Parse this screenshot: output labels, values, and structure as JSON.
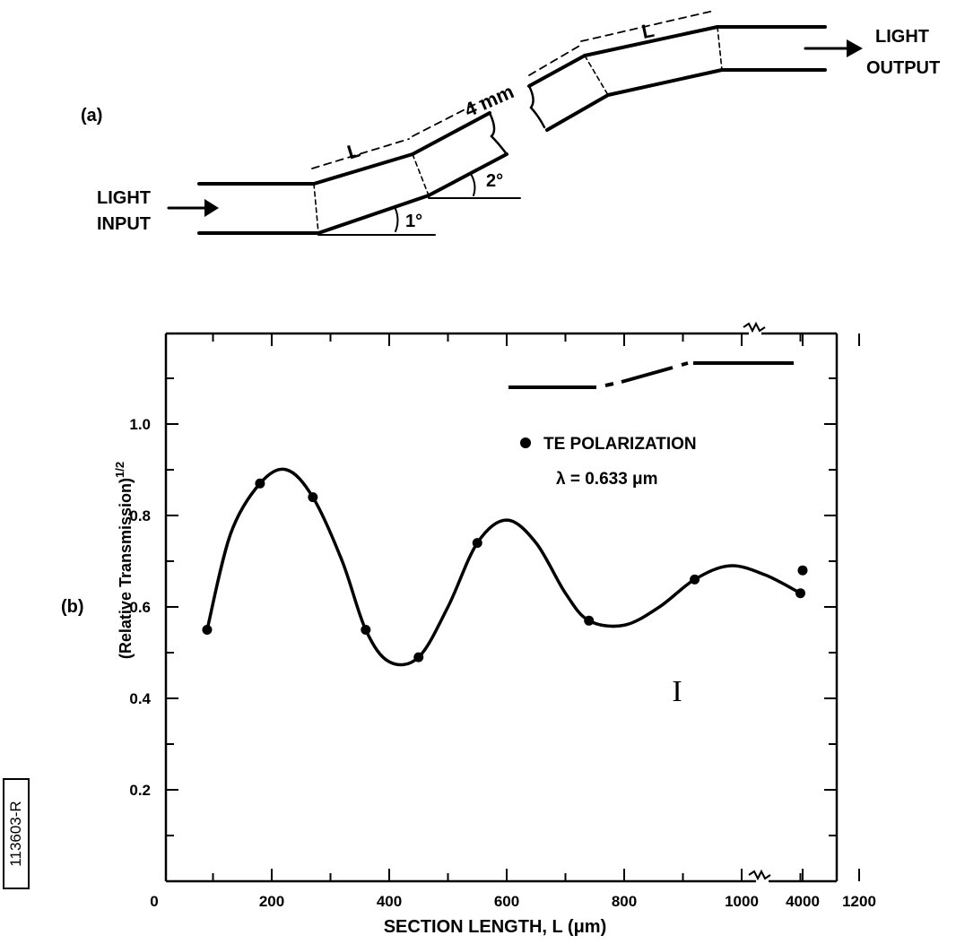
{
  "panel_a": {
    "label": "(a)",
    "input_label": [
      "LIGHT",
      "INPUT"
    ],
    "output_label": [
      "LIGHT",
      "OUTPUT"
    ],
    "section_label_left": "L",
    "section_label_right": "L",
    "gap_label": "4 mm",
    "angle_1": "1°",
    "angle_2": "2°"
  },
  "panel_b": {
    "label": "(b)"
  },
  "side_id": "113603-R",
  "colors": {
    "ink": "#000000",
    "background": "#ffffff"
  },
  "chart_data": {
    "type": "scatter",
    "xlabel": "SECTION LENGTH, L (μm)",
    "ylabel": "(Relative Transmission)",
    "ylabel_superscript": "1/2",
    "xlim": [
      0,
      1300
    ],
    "ylim": [
      0,
      1.2
    ],
    "x_axis_break": true,
    "x_ticks": [
      "0",
      "200",
      "400",
      "600",
      "800",
      "1000",
      "1200",
      "4000"
    ],
    "y_ticks": [
      "0.2",
      "0.4",
      "0.6",
      "0.8",
      "1.0"
    ],
    "legend_position": "upper-right",
    "series": [
      {
        "name": "TE POLARIZATION",
        "marker": "filled-circle",
        "x": [
          90,
          180,
          270,
          360,
          450,
          550,
          740,
          920,
          1100,
          4000
        ],
        "y": [
          0.55,
          0.87,
          0.84,
          0.55,
          0.49,
          0.74,
          0.57,
          0.66,
          0.63,
          0.68
        ]
      }
    ],
    "fit_curve": {
      "x": [
        90,
        130,
        180,
        225,
        270,
        320,
        360,
        400,
        450,
        500,
        550,
        600,
        650,
        700,
        740,
        800,
        860,
        920,
        980,
        1040,
        1100
      ],
      "y": [
        0.55,
        0.76,
        0.87,
        0.9,
        0.84,
        0.7,
        0.55,
        0.48,
        0.49,
        0.6,
        0.74,
        0.79,
        0.74,
        0.63,
        0.57,
        0.56,
        0.6,
        0.66,
        0.69,
        0.67,
        0.63
      ]
    },
    "legend_lines": [
      "TE POLARIZATION",
      "λ = 0.633 μm"
    ],
    "error_bar_symbol": "I"
  }
}
